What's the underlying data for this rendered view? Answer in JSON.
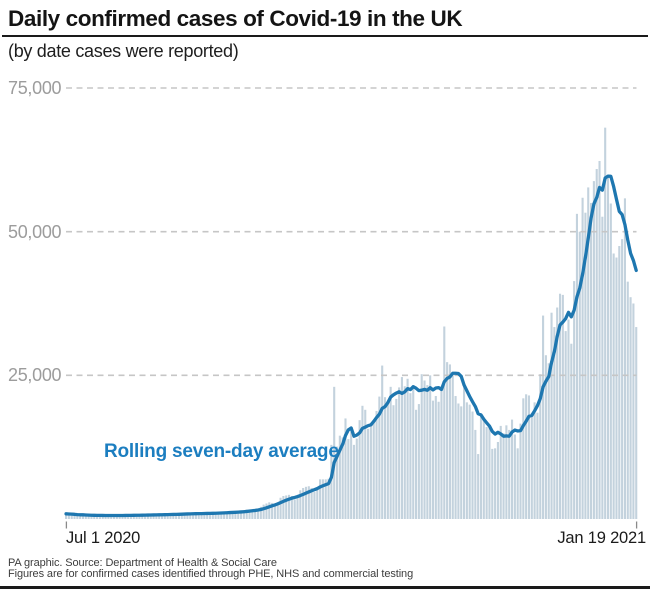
{
  "header": {
    "title": "Daily confirmed cases of Covid-19 in the UK",
    "subtitle": "(by date cases were reported)"
  },
  "annotation": {
    "label": "Rolling seven-day average"
  },
  "y_axis": {
    "labels": [
      "75,000",
      "50,000",
      "25,000"
    ]
  },
  "x_axis": {
    "start_label": "Jul 1 2020",
    "end_label": "Jan 19 2021"
  },
  "footer": {
    "source": "PA graphic. Source: Department of Health & Social Care",
    "note": "Figures are for confirmed cases identified through PHE, NHS and commercial testing"
  },
  "colors": {
    "bar": "#c3d2dd",
    "line": "#1e77b0",
    "annotation_text": "#1c7ec0",
    "grid": "#c6c6c6",
    "tick": "#8a8a8a",
    "y_label_text": "#9c9c9c",
    "text": "#1a1a1a"
  },
  "chart_data": {
    "type": "bar",
    "title": "Daily confirmed cases of Covid-19 in the UK",
    "subtitle": "(by date cases were reported)",
    "x_start_date": "Jul 1 2020",
    "x_end_date": "Jan 19 2021",
    "x_unit": "day",
    "ylim": [
      0,
      75000
    ],
    "gridline_values": [
      75000,
      50000,
      25000
    ],
    "grid_style": "dashed-horizontal",
    "bar_series_name": "Daily confirmed cases",
    "line_series_name": "Rolling seven-day average",
    "line_derivation": "trailing-7-day-mean-of-daily-values",
    "daily_values": [
      900,
      850,
      800,
      700,
      560,
      590,
      700,
      700,
      690,
      660,
      600,
      490,
      530,
      650,
      670,
      670,
      650,
      600,
      490,
      540,
      680,
      720,
      710,
      700,
      650,
      540,
      600,
      750,
      790,
      790,
      780,
      720,
      600,
      660,
      840,
      880,
      880,
      880,
      810,
      680,
      760,
      970,
      1020,
      1020,
      1000,
      910,
      760,
      830,
      1050,
      1100,
      1100,
      1100,
      1010,
      850,
      940,
      1200,
      1270,
      1280,
      1280,
      1190,
      1010,
      1130,
      1450,
      1540,
      1620,
      1680,
      1620,
      1400,
      1620,
      2120,
      2500,
      2700,
      2900,
      2800,
      2500,
      2900,
      3700,
      4000,
      4100,
      4200,
      4000,
      3400,
      3900,
      5000,
      5400,
      5600,
      5700,
      5400,
      4700,
      5300,
      6900,
      6900,
      6900,
      7000,
      12900,
      23000,
      12600,
      14500,
      14200,
      17500,
      13900,
      15200,
      12900,
      14000,
      17200,
      19700,
      19000,
      15700,
      16200,
      17000,
      18800,
      21300,
      26700,
      21200,
      20500,
      23000,
      19800,
      20900,
      22900,
      24700,
      23100,
      24400,
      21900,
      23300,
      19000,
      20000,
      25200,
      24100,
      23300,
      25000,
      20600,
      21400,
      20400,
      23000,
      33500,
      27300,
      26900,
      25000,
      21400,
      20100,
      19600,
      22900,
      20300,
      19900,
      18700,
      15500,
      11300,
      18200,
      17600,
      16000,
      15900,
      12200,
      12300,
      13400,
      16200,
      14900,
      16300,
      15500,
      17300,
      14700,
      12300,
      16600,
      21000,
      21700,
      21500,
      18400,
      20300,
      18500,
      25200,
      35400,
      28500,
      27100,
      35900,
      33400,
      36800,
      39200,
      39000,
      32700,
      34700,
      30500,
      41400,
      53100,
      50000,
      55900,
      53300,
      57700,
      55000,
      58800,
      60900,
      62300,
      52600,
      68100,
      59900,
      54900,
      46200,
      45500,
      47500,
      48700,
      55800,
      41300,
      38600,
      37500,
      33400
    ]
  }
}
